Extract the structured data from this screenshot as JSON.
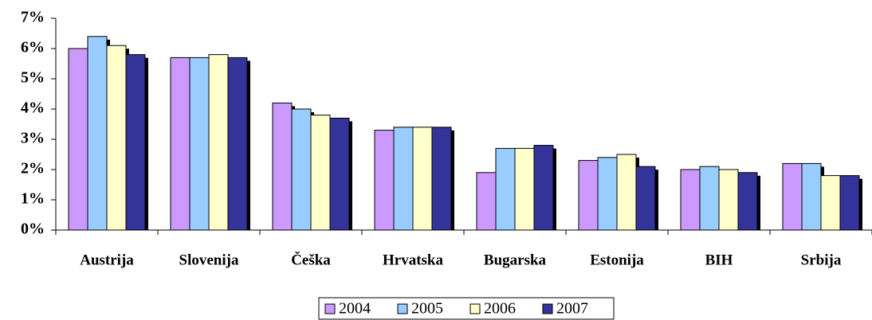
{
  "chart_data": {
    "type": "bar",
    "categories": [
      "Austrija",
      "Slovenija",
      "Češka",
      "Hrvatska",
      "Bugarska",
      "Estonija",
      "BIH",
      "Srbija"
    ],
    "series": [
      {
        "name": "2004",
        "color": "#cc99ff",
        "values": [
          6.0,
          5.7,
          4.2,
          3.3,
          1.9,
          2.3,
          2.0,
          2.2
        ]
      },
      {
        "name": "2005",
        "color": "#99ccff",
        "values": [
          6.4,
          5.7,
          4.0,
          3.4,
          2.7,
          2.4,
          2.1,
          2.2
        ]
      },
      {
        "name": "2006",
        "color": "#ffffcc",
        "values": [
          6.1,
          5.8,
          3.8,
          3.4,
          2.7,
          2.5,
          2.0,
          1.8
        ]
      },
      {
        "name": "2007",
        "color": "#333399",
        "values": [
          5.8,
          5.7,
          3.7,
          3.4,
          2.8,
          2.1,
          1.9,
          1.8
        ]
      }
    ],
    "ylim": [
      0,
      7
    ],
    "yticks": [
      {
        "value": 0,
        "label": "0%"
      },
      {
        "value": 1,
        "label": "1%"
      },
      {
        "value": 2,
        "label": "2%"
      },
      {
        "value": 3,
        "label": "3%"
      },
      {
        "value": 4,
        "label": "4%"
      },
      {
        "value": 5,
        "label": "5%"
      },
      {
        "value": 6,
        "label": "6%"
      },
      {
        "value": 7,
        "label": "7%"
      }
    ],
    "legend": "bottom"
  }
}
